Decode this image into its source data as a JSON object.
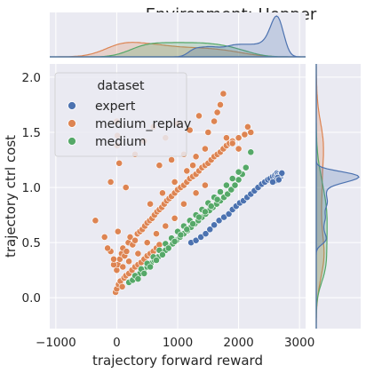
{
  "chart_data": {
    "type": "scatter",
    "title": "Environment: Hopper",
    "xlabel": "trajectory forward reward",
    "ylabel": "trajectory ctrl cost",
    "xlim": [
      -1100,
      3100
    ],
    "ylim": [
      -0.28,
      2.12
    ],
    "xticks": [
      -1000,
      0,
      1000,
      2000,
      3000
    ],
    "xtick_labels": [
      "−1000",
      "0",
      "1000",
      "2000",
      "3000"
    ],
    "yticks": [
      0.0,
      0.5,
      1.0,
      1.5,
      2.0
    ],
    "ytick_labels": [
      "0.0",
      "0.5",
      "1.0",
      "1.5",
      "2.0"
    ],
    "grid": true,
    "legend": {
      "title": "dataset",
      "placement": "top-left",
      "entries": [
        "expert",
        "medium_replay",
        "medium"
      ]
    },
    "colors": {
      "expert": "#4c72b0",
      "medium_replay": "#dd8452",
      "medium": "#55a868",
      "background": "#eaeaf2",
      "grid": "#ffffff"
    },
    "series": [
      {
        "name": "expert",
        "color": "#4c72b0",
        "x": [
          1220,
          1300,
          1380,
          1460,
          1530,
          1600,
          1680,
          1760,
          1840,
          1900,
          1960,
          2020,
          2080,
          2140,
          2200,
          2260,
          2320,
          2380,
          2430,
          2480,
          2520,
          2560,
          2590,
          2610,
          2630,
          2650,
          2670,
          2690,
          2700,
          2710,
          2640,
          2600,
          2560,
          2660
        ],
        "y": [
          0.5,
          0.52,
          0.55,
          0.58,
          0.62,
          0.66,
          0.7,
          0.73,
          0.76,
          0.8,
          0.83,
          0.86,
          0.88,
          0.91,
          0.94,
          0.97,
          1.0,
          1.03,
          1.05,
          1.07,
          1.08,
          1.1,
          1.11,
          1.12,
          1.13,
          1.12,
          1.11,
          1.1,
          1.12,
          1.13,
          1.09,
          1.06,
          1.05,
          1.07
        ]
      },
      {
        "name": "medium_replay",
        "color": "#dd8452",
        "x": [
          -20,
          0,
          30,
          60,
          90,
          120,
          150,
          200,
          250,
          300,
          350,
          400,
          450,
          500,
          550,
          600,
          650,
          700,
          0,
          20,
          50,
          80,
          100,
          130,
          160,
          190,
          220,
          260,
          300,
          340,
          380,
          420,
          460,
          500,
          540,
          580,
          620,
          660,
          700,
          740,
          780,
          820,
          860,
          900,
          950,
          1000,
          1050,
          1100,
          1150,
          1200,
          1250,
          1300,
          1350,
          1400,
          1450,
          1500,
          1550,
          1600,
          1650,
          1700,
          1750,
          1800,
          1850,
          1900,
          2000,
          2100,
          2200,
          -350,
          -200,
          -100,
          -50,
          20,
          0,
          10,
          5,
          40,
          -100,
          150,
          300,
          450,
          600,
          800,
          1000,
          1200,
          1350,
          1500,
          1650,
          1800,
          1900,
          2000,
          2150,
          700,
          900,
          1100,
          1300,
          1450,
          1600,
          1700,
          1750,
          550,
          750,
          950,
          1150,
          1250,
          -150,
          -50,
          100,
          200,
          350,
          500,
          650,
          800,
          950,
          1100,
          1300,
          1450
        ],
        "y": [
          0.05,
          0.08,
          0.12,
          0.15,
          0.1,
          0.18,
          0.2,
          0.22,
          0.25,
          0.28,
          0.3,
          0.32,
          0.35,
          0.38,
          0.4,
          0.42,
          0.45,
          0.48,
          0.25,
          0.3,
          0.35,
          0.4,
          0.45,
          0.38,
          0.42,
          0.5,
          0.55,
          0.48,
          0.52,
          0.58,
          0.6,
          0.62,
          0.65,
          0.68,
          0.7,
          0.72,
          0.75,
          0.78,
          0.8,
          0.82,
          0.85,
          0.88,
          0.9,
          0.92,
          0.95,
          0.98,
          1.0,
          1.02,
          1.05,
          1.08,
          1.1,
          1.12,
          1.15,
          1.18,
          1.2,
          1.22,
          1.25,
          1.28,
          1.3,
          1.32,
          1.35,
          1.38,
          1.4,
          1.42,
          1.45,
          1.48,
          1.5,
          0.7,
          0.55,
          0.42,
          0.3,
          0.6,
          1.6,
          1.47,
          1.38,
          1.22,
          1.05,
          1.0,
          1.3,
          1.42,
          1.55,
          1.45,
          1.58,
          1.52,
          1.65,
          1.5,
          1.68,
          1.45,
          1.4,
          1.35,
          1.55,
          1.2,
          1.25,
          1.3,
          1.28,
          1.35,
          1.6,
          1.75,
          1.85,
          0.85,
          0.95,
          1.05,
          1.15,
          1.2,
          0.45,
          0.35,
          0.28,
          0.33,
          0.4,
          0.5,
          0.58,
          0.65,
          0.72,
          0.85,
          0.95,
          1.02
        ]
      },
      {
        "name": "medium",
        "color": "#55a868",
        "x": [
          200,
          260,
          320,
          380,
          440,
          500,
          560,
          620,
          680,
          740,
          800,
          860,
          920,
          980,
          1040,
          1100,
          1160,
          1220,
          1280,
          1340,
          1400,
          1460,
          1520,
          1580,
          1640,
          1700,
          1760,
          1820,
          1880,
          1940,
          2000,
          2060,
          2120,
          2200,
          300,
          400,
          500,
          600,
          700,
          800,
          900,
          1000,
          1100,
          1200,
          1300,
          1400,
          1500,
          1600,
          1700,
          1800,
          1900,
          2000,
          350,
          450,
          550,
          650,
          750,
          850,
          950,
          1050,
          1150,
          1250,
          1350,
          1450,
          1550,
          1650
        ],
        "y": [
          0.14,
          0.16,
          0.19,
          0.22,
          0.25,
          0.28,
          0.31,
          0.34,
          0.37,
          0.4,
          0.43,
          0.46,
          0.49,
          0.52,
          0.55,
          0.58,
          0.61,
          0.64,
          0.67,
          0.7,
          0.73,
          0.76,
          0.79,
          0.82,
          0.85,
          0.88,
          0.91,
          0.94,
          0.98,
          1.02,
          1.07,
          1.12,
          1.18,
          1.32,
          0.2,
          0.26,
          0.31,
          0.37,
          0.43,
          0.49,
          0.54,
          0.6,
          0.65,
          0.7,
          0.75,
          0.8,
          0.86,
          0.91,
          0.96,
          1.02,
          1.08,
          1.14,
          0.17,
          0.22,
          0.28,
          0.34,
          0.39,
          0.45,
          0.51,
          0.57,
          0.62,
          0.67,
          0.73,
          0.78,
          0.83,
          0.89
        ]
      }
    ],
    "marginal_x": {
      "type": "kde",
      "expert_peak_x": 2600,
      "medium_replay_peak_x": 100,
      "medium_peak_x": 1000
    },
    "marginal_y": {
      "type": "kde",
      "expert_peak_y": 1.1,
      "medium_replay_peak_y": 0.2,
      "medium_peak_y": 0.5
    }
  }
}
